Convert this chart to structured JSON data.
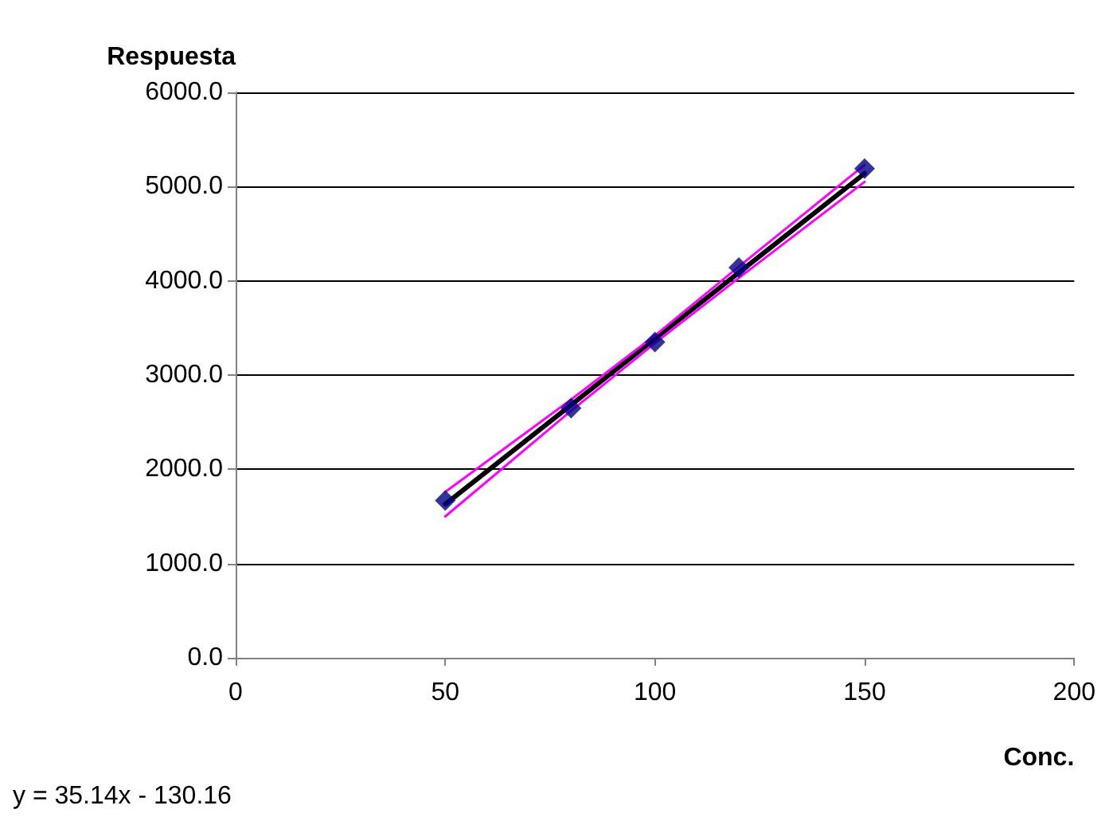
{
  "chart_data": {
    "type": "scatter",
    "xlabel": "Conc.",
    "ylabel": "Respuesta",
    "annotations": [
      "y = 35.14x - 130.16"
    ],
    "x": [
      50,
      80,
      100,
      120,
      150
    ],
    "series": [
      {
        "color": "#000080",
        "marker": "diamond",
        "values": [
          1670,
          2650,
          3350,
          4140,
          5190
        ]
      },
      {
        "type": "line",
        "color": "#000000",
        "x": [
          50,
          150
        ],
        "values": [
          1630,
          5140
        ]
      },
      {
        "type": "line",
        "color": "#ff00ff",
        "x": [
          50,
          80,
          100,
          120,
          150
        ],
        "values": [
          1760,
          2740,
          3420,
          4150,
          5230
        ]
      },
      {
        "type": "line",
        "color": "#ff00ff",
        "x": [
          50,
          80,
          100,
          120,
          150
        ],
        "values": [
          1500,
          2620,
          3340,
          4030,
          5050
        ]
      }
    ],
    "xlim": [
      0,
      200
    ],
    "xticks": [
      0,
      50,
      100,
      150,
      200
    ],
    "ylim": [
      0,
      6000
    ],
    "yticks": [
      {
        "value": 0,
        "label": "0.0"
      },
      {
        "value": 1000,
        "label": "1000.0"
      },
      {
        "value": 2000,
        "label": "2000.0"
      },
      {
        "value": 3000,
        "label": "3000.0"
      },
      {
        "value": 4000,
        "label": "4000.0"
      },
      {
        "value": 5000,
        "label": "5000.0"
      },
      {
        "value": 6000,
        "label": "6000.0"
      }
    ],
    "grid": "y"
  }
}
